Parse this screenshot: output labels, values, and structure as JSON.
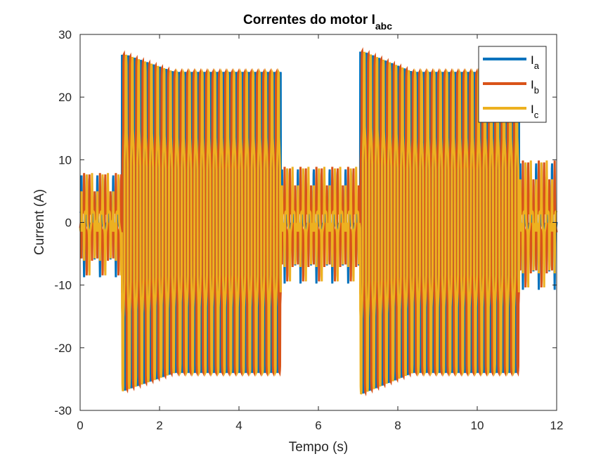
{
  "chart_data": {
    "type": "line",
    "title": "Correntes do motor I",
    "title_subscript": "abc",
    "xlabel": "Tempo (s)",
    "ylabel": "Current (A)",
    "xlim": [
      0,
      12
    ],
    "ylim": [
      -30,
      30
    ],
    "xticks": [
      0,
      2,
      4,
      6,
      8,
      10,
      12
    ],
    "yticks": [
      -30,
      -20,
      -10,
      0,
      10,
      20,
      30
    ],
    "grid": false,
    "legend_position": "top-right",
    "series": [
      {
        "name": "I",
        "subscript": "a",
        "color": "#0072BD"
      },
      {
        "name": "I",
        "subscript": "b",
        "color": "#D95319"
      },
      {
        "name": "I",
        "subscript": "c",
        "color": "#EDB120"
      }
    ],
    "segments": [
      {
        "t_start": 0.0,
        "t_end": 1.05,
        "state": "low",
        "amplitude": 2.5,
        "peak_amplitude": 7,
        "frequency_hz": 5.0
      },
      {
        "t_start": 1.05,
        "t_end": 5.05,
        "state": "high",
        "amplitude_start": 27,
        "amplitude_end": 24,
        "frequency_hz": 6.25
      },
      {
        "t_start": 5.05,
        "t_end": 7.05,
        "state": "low",
        "amplitude": 2.5,
        "peak_amplitude": 8,
        "frequency_hz": 5.0
      },
      {
        "t_start": 7.05,
        "t_end": 11.05,
        "state": "high",
        "amplitude_start": 27.5,
        "amplitude_end": 24,
        "frequency_hz": 6.25
      },
      {
        "t_start": 11.05,
        "t_end": 12.0,
        "state": "low",
        "amplitude": 2.5,
        "peak_amplitude": 9,
        "frequency_hz": 5.0
      }
    ]
  }
}
